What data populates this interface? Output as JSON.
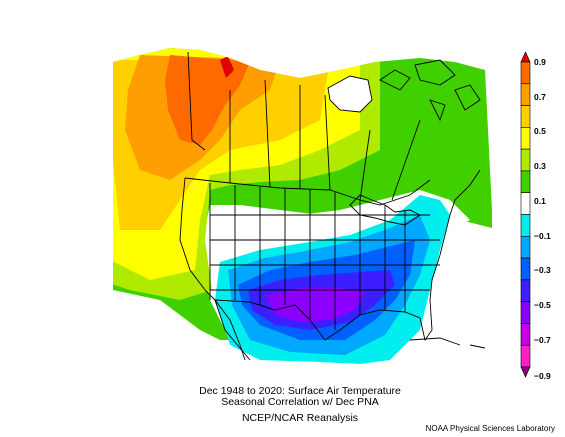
{
  "figure": {
    "title_line1": "Dec 1948 to 2020: Surface Air Temperature",
    "title_line2": "Seasonal Correlation w/ Dec PNA",
    "source": "NCEP/NCAR Reanalysis",
    "credit": "NOAA Physical Sciences Laboratory"
  },
  "colorbar": {
    "labels": [
      "0.9",
      "0.7",
      "0.5",
      "0.3",
      "0.1",
      "−0.1",
      "−0.3",
      "−0.5",
      "−0.7",
      "−0.9"
    ],
    "colors": [
      "#e00000",
      "#ff6a00",
      "#ff9e00",
      "#ffd000",
      "#ffff00",
      "#b0ea00",
      "#40d000",
      "#ffffff",
      "#00eeee",
      "#00a8ff",
      "#0060ff",
      "#3c1eff",
      "#8c00ff",
      "#c800e8",
      "#ff1ec8",
      "#8c0082"
    ]
  },
  "map_data": {
    "region": "North America",
    "field": "correlation",
    "pattern": [
      {
        "area": "Alaska / NW Canada",
        "level": 0.7
      },
      {
        "area": "Yukon peak",
        "level": 0.9
      },
      {
        "area": "Pacific Northwest / W Canada",
        "level": 0.5
      },
      {
        "area": "Western US / Pacific",
        "level": 0.3
      },
      {
        "area": "Central Canada / Hudson Bay",
        "level": 0.1
      },
      {
        "area": "Central US",
        "level": 0.0
      },
      {
        "area": "Southeast US",
        "level": -0.3
      },
      {
        "area": "Texas / Gulf Coast",
        "level": -0.5
      }
    ]
  }
}
